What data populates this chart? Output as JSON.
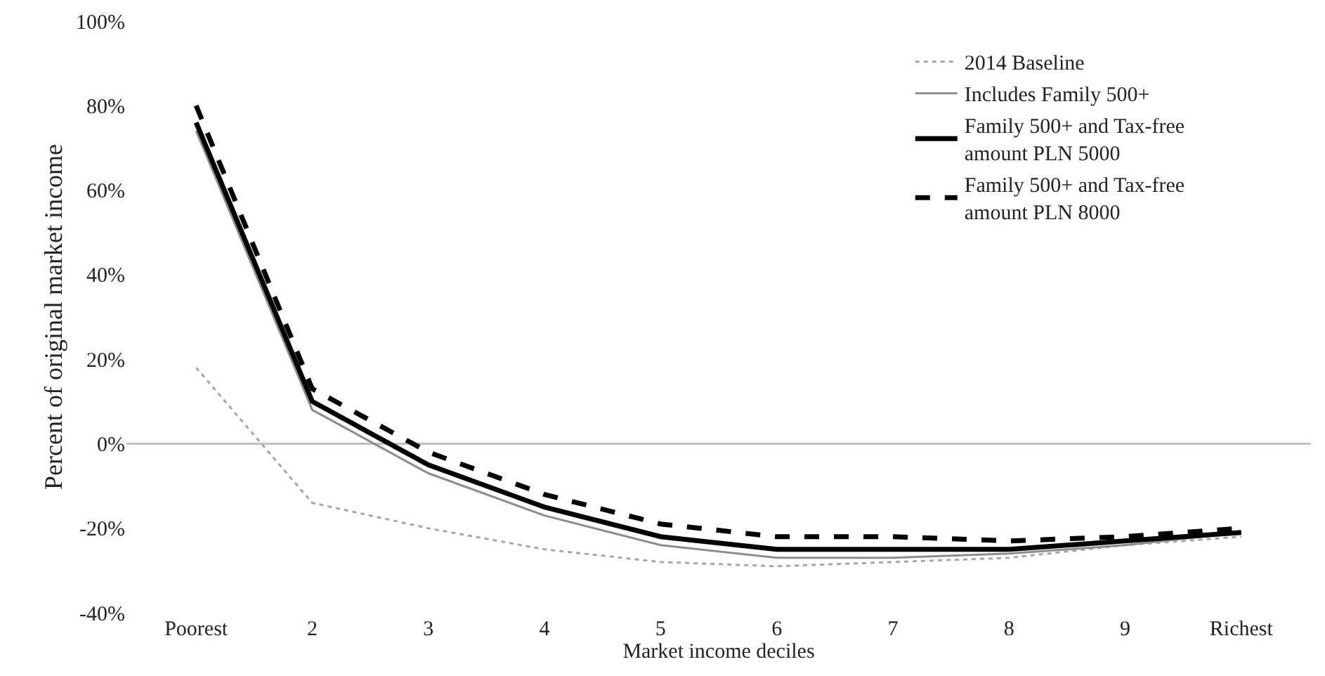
{
  "chart_data": {
    "type": "line",
    "xlabel": "Market income deciles",
    "ylabel": "Percent of original market income",
    "categories": [
      "Poorest",
      "2",
      "3",
      "4",
      "5",
      "6",
      "7",
      "8",
      "9",
      "Richest"
    ],
    "series": [
      {
        "name": "2014 Baseline",
        "color": "#a6a6a6",
        "line_style": "dotted",
        "values": [
          18,
          -14,
          -20,
          -25,
          -28,
          -29,
          -28,
          -27,
          -24,
          -22
        ]
      },
      {
        "name": "Includes Family 500+",
        "color": "#8c8c8c",
        "line_style": "solid",
        "values": [
          74,
          8,
          -7,
          -17,
          -24,
          -27,
          -27,
          -26,
          -24,
          -21
        ]
      },
      {
        "name": "Family 500+ and Tax-free amount PLN 5000",
        "color": "#000000",
        "line_style": "solid",
        "values": [
          76,
          10,
          -5,
          -15,
          -22,
          -25,
          -25,
          -25,
          -23,
          -21
        ]
      },
      {
        "name": "Family 500+ and Tax-free amount PLN 8000",
        "color": "#000000",
        "line_style": "dashed",
        "values": [
          80,
          13,
          -2,
          -12,
          -19,
          -22,
          -22,
          -23,
          -22,
          -20
        ]
      }
    ],
    "ylim": [
      -40,
      100
    ],
    "yticks": [
      {
        "value": -40,
        "label": "-40%"
      },
      {
        "value": -20,
        "label": "-20%"
      },
      {
        "value": 0,
        "label": "0%"
      },
      {
        "value": 20,
        "label": "20%"
      },
      {
        "value": 40,
        "label": "40%"
      },
      {
        "value": 60,
        "label": "60%"
      },
      {
        "value": 80,
        "label": "80%"
      },
      {
        "value": 100,
        "label": "100%"
      }
    ],
    "ref_lines": [
      {
        "axis": "y",
        "value": 0,
        "color": "#bfbfbf"
      }
    ],
    "grid": false,
    "legend": "top right",
    "marker": "none"
  }
}
